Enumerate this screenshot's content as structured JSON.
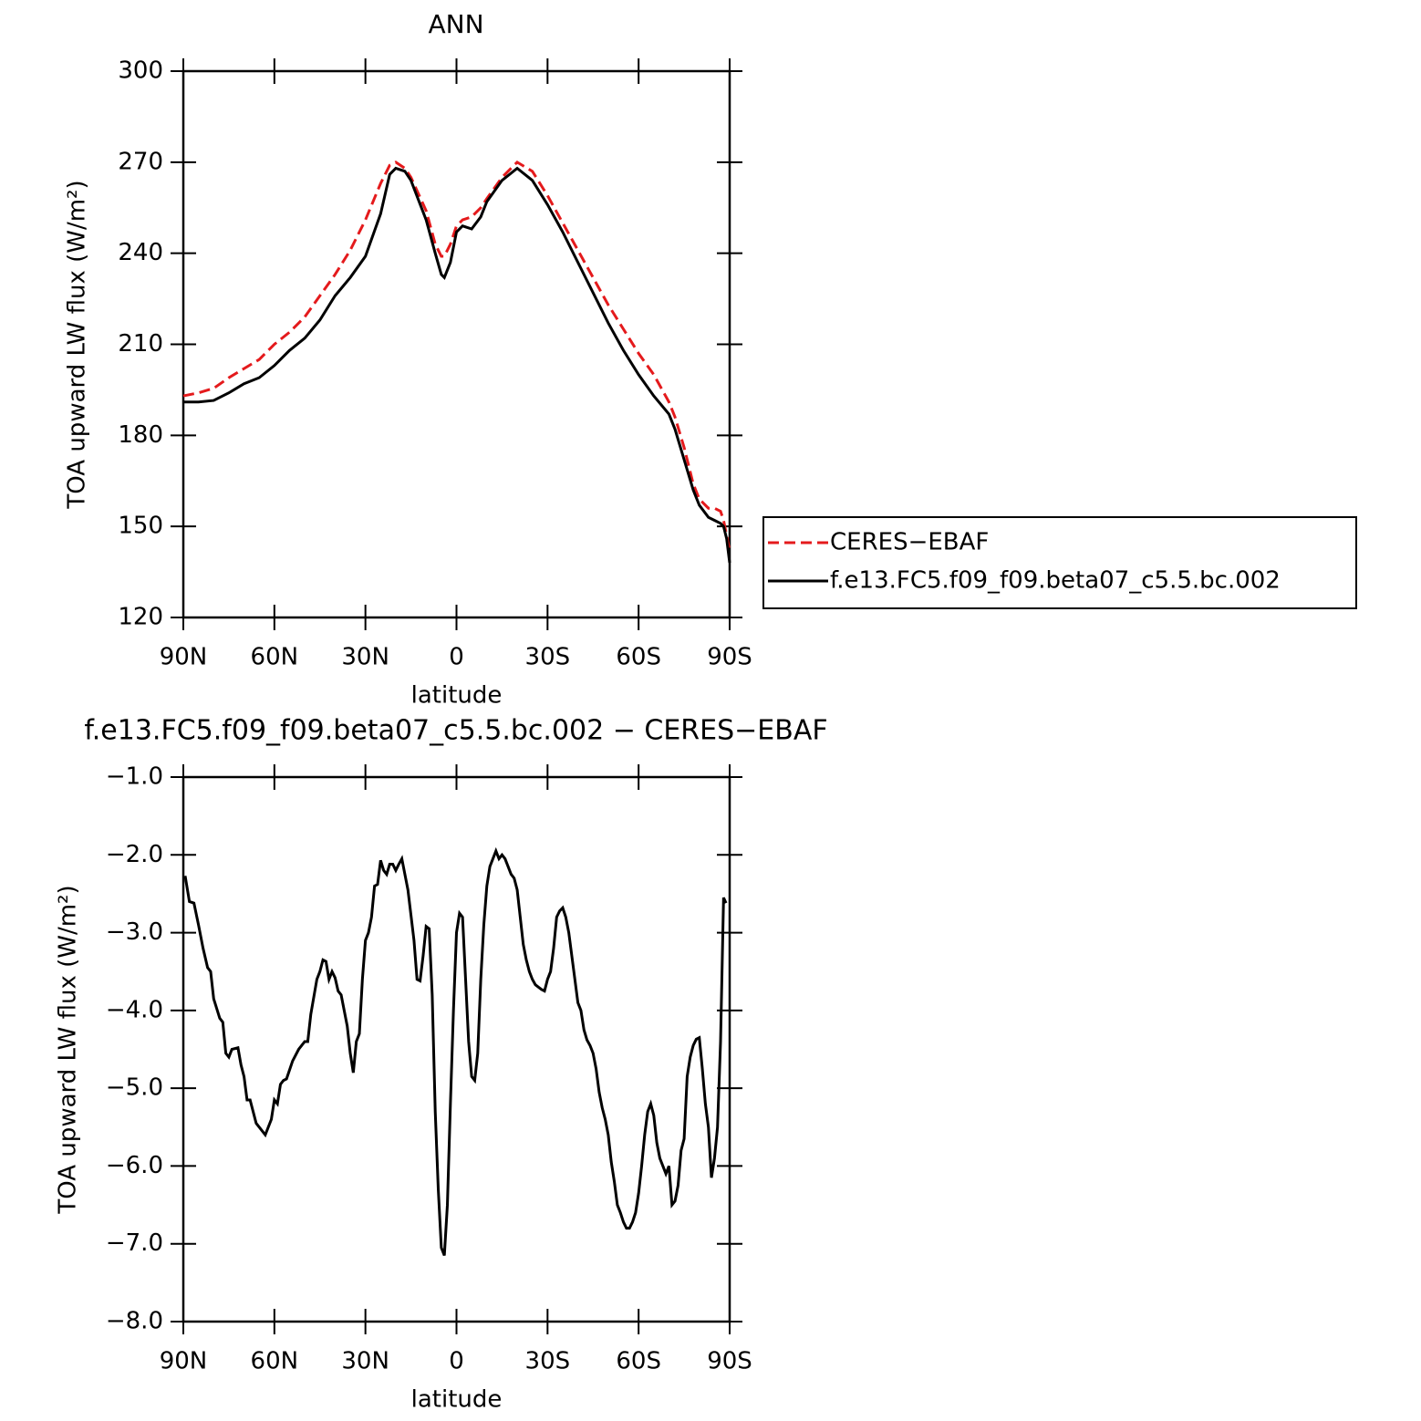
{
  "chart_data": [
    {
      "type": "line",
      "title": "ANN",
      "xlabel": "latitude",
      "ylabel": "TOA upward LW flux (W/m²)",
      "x": [
        90,
        85,
        80,
        75,
        70,
        65,
        60,
        55,
        50,
        45,
        40,
        35,
        30,
        25,
        22,
        20,
        17,
        15,
        10,
        7,
        5,
        4,
        2,
        0,
        -2,
        -5,
        -8,
        -10,
        -15,
        -20,
        -25,
        -30,
        -35,
        -40,
        -45,
        -50,
        -55,
        -60,
        -65,
        -70,
        -72,
        -75,
        -78,
        -80,
        -83,
        -85,
        -87,
        -88,
        -89,
        -90
      ],
      "series": [
        {
          "name": "CERES−EBAF",
          "color": "#e41a1c",
          "line_style": "dashed",
          "values": [
            193,
            194,
            195.5,
            199,
            202,
            205,
            210,
            214,
            219,
            226,
            233,
            241,
            251,
            263,
            269,
            270,
            268,
            265,
            254,
            243,
            239,
            239,
            243,
            249,
            251,
            252,
            255,
            258,
            265,
            270,
            267,
            259,
            250,
            241,
            232,
            223,
            215,
            207,
            200,
            191,
            186,
            176,
            164,
            159,
            156,
            156,
            155,
            152,
            147,
            142
          ]
        },
        {
          "name": "f.e13.FC5.f09_f09.beta07_c5.5.bc.002",
          "color": "#000000",
          "line_style": "solid",
          "values": [
            191,
            191,
            191.5,
            194,
            197,
            199,
            203,
            208,
            212,
            218,
            226,
            232,
            239,
            253,
            266,
            268,
            267,
            264,
            251,
            240,
            233,
            232,
            237,
            247,
            249,
            248,
            252,
            257,
            264,
            268,
            264,
            256,
            247,
            237,
            227,
            217,
            208,
            200,
            193,
            187,
            182,
            172,
            162,
            157,
            153,
            152,
            151,
            150,
            146,
            138
          ]
        }
      ],
      "xlim": [
        90,
        -90
      ],
      "xticks": [
        {
          "value": 90,
          "label": "90N"
        },
        {
          "value": 60,
          "label": "60N"
        },
        {
          "value": 30,
          "label": "30N"
        },
        0,
        {
          "value": -30,
          "label": "30S"
        },
        {
          "value": -60,
          "label": "60S"
        },
        {
          "value": -90,
          "label": "90S"
        }
      ],
      "ylim": [
        120,
        300
      ],
      "yticks": [
        120,
        150,
        180,
        210,
        240,
        270,
        300
      ],
      "legend": "right"
    },
    {
      "type": "line",
      "title": "f.e13.FC5.f09_f09.beta07_c5.5.bc.002 − CERES−EBAF",
      "xlabel": "latitude",
      "ylabel": "TOA upward LW flux (W/m²)",
      "x": [
        89.4,
        88,
        86.5,
        85,
        83.5,
        82,
        81,
        80,
        78,
        77,
        76,
        75,
        74,
        72,
        71,
        70,
        69,
        68,
        66,
        63,
        61,
        60,
        59,
        58,
        57,
        56,
        54,
        52,
        50,
        49,
        48,
        46,
        45,
        44,
        43,
        42,
        41,
        40,
        39,
        38,
        36,
        35,
        34,
        33,
        32,
        31,
        30,
        29,
        28,
        27,
        26,
        25,
        24,
        23,
        22,
        21,
        20,
        19,
        18,
        16,
        14,
        13,
        12,
        11,
        10,
        9,
        8,
        7,
        6,
        5,
        4,
        3,
        2,
        1,
        0,
        -1,
        -2,
        -3,
        -4,
        -5,
        -6,
        -7,
        -8,
        -9,
        -10,
        -11,
        -12,
        -13,
        -14,
        -15,
        -16,
        -17,
        -18,
        -19,
        -20,
        -21,
        -22,
        -23,
        -24,
        -25,
        -26,
        -27,
        -28,
        -29,
        -30,
        -31,
        -32,
        -33,
        -34,
        -35,
        -36,
        -37,
        -38,
        -39,
        -40,
        -41,
        -42,
        -43,
        -44,
        -45,
        -46,
        -47,
        -48,
        -49,
        -50,
        -51,
        -52,
        -53,
        -54,
        -55,
        -56,
        -57,
        -58,
        -59,
        -60,
        -61,
        -62,
        -63,
        -64,
        -65,
        -66,
        -67,
        -68,
        -69,
        -70,
        -71,
        -72,
        -73,
        -74,
        -75,
        -76,
        -77,
        -78,
        -79,
        -80,
        -81,
        -82,
        -83,
        -84,
        -85,
        -86,
        -87,
        -88,
        -88.8
      ],
      "series": [
        {
          "color": "#000000",
          "values": [
            -2.27,
            -2.6,
            -2.62,
            -2.9,
            -3.2,
            -3.45,
            -3.5,
            -3.85,
            -4.1,
            -4.15,
            -4.55,
            -4.6,
            -4.5,
            -4.48,
            -4.7,
            -4.85,
            -5.15,
            -5.15,
            -5.45,
            -5.6,
            -5.4,
            -5.15,
            -5.2,
            -4.95,
            -4.9,
            -4.88,
            -4.65,
            -4.5,
            -4.4,
            -4.4,
            -4.05,
            -3.6,
            -3.5,
            -3.35,
            -3.37,
            -3.6,
            -3.5,
            -3.58,
            -3.75,
            -3.8,
            -4.2,
            -4.55,
            -4.8,
            -4.4,
            -4.3,
            -3.6,
            -3.1,
            -3.0,
            -2.8,
            -2.4,
            -2.38,
            -2.07,
            -2.2,
            -2.25,
            -2.12,
            -2.12,
            -2.2,
            -2.12,
            -2.05,
            -2.45,
            -3.1,
            -3.6,
            -3.62,
            -3.3,
            -2.92,
            -2.95,
            -3.8,
            -5.3,
            -6.3,
            -7.05,
            -7.15,
            -6.5,
            -5.2,
            -4.0,
            -3.0,
            -2.75,
            -2.8,
            -3.6,
            -4.4,
            -4.85,
            -4.9,
            -4.55,
            -3.6,
            -2.9,
            -2.4,
            -2.15,
            -2.05,
            -1.95,
            -2.05,
            -2.0,
            -2.05,
            -2.15,
            -2.25,
            -2.3,
            -2.45,
            -2.8,
            -3.15,
            -3.35,
            -3.5,
            -3.6,
            -3.67,
            -3.7,
            -3.73,
            -3.75,
            -3.6,
            -3.5,
            -3.2,
            -2.8,
            -2.72,
            -2.68,
            -2.8,
            -3.0,
            -3.3,
            -3.6,
            -3.9,
            -4.0,
            -4.25,
            -4.38,
            -4.45,
            -4.55,
            -4.75,
            -5.05,
            -5.25,
            -5.4,
            -5.6,
            -5.95,
            -6.2,
            -6.5,
            -6.6,
            -6.72,
            -6.8,
            -6.8,
            -6.72,
            -6.6,
            -6.35,
            -6.0,
            -5.6,
            -5.3,
            -5.2,
            -5.35,
            -5.7,
            -5.9,
            -6.0,
            -6.1,
            -6.0,
            -6.5,
            -6.45,
            -6.25,
            -5.8,
            -5.65,
            -4.85,
            -4.6,
            -4.45,
            -4.37,
            -4.35,
            -4.75,
            -5.2,
            -5.5,
            -6.15,
            -5.9,
            -5.5,
            -4.4,
            -2.55,
            -2.62
          ]
        }
      ],
      "xlim": [
        90,
        -90
      ],
      "xticks": [
        {
          "value": 90,
          "label": "90N"
        },
        {
          "value": 60,
          "label": "60N"
        },
        {
          "value": 30,
          "label": "30N"
        },
        0,
        {
          "value": -30,
          "label": "30S"
        },
        {
          "value": -60,
          "label": "60S"
        },
        {
          "value": -90,
          "label": "90S"
        }
      ],
      "ylim": [
        -8,
        -1
      ],
      "yticks": [
        {
          "value": -8,
          "label": "−8.0"
        },
        {
          "value": -7,
          "label": "−7.0"
        },
        {
          "value": -6,
          "label": "−6.0"
        },
        {
          "value": -5,
          "label": "−5.0"
        },
        {
          "value": -4,
          "label": "−4.0"
        },
        {
          "value": -3,
          "label": "−3.0"
        },
        {
          "value": -2,
          "label": "−2.0"
        },
        {
          "value": -1,
          "label": "−1.0"
        }
      ]
    }
  ]
}
